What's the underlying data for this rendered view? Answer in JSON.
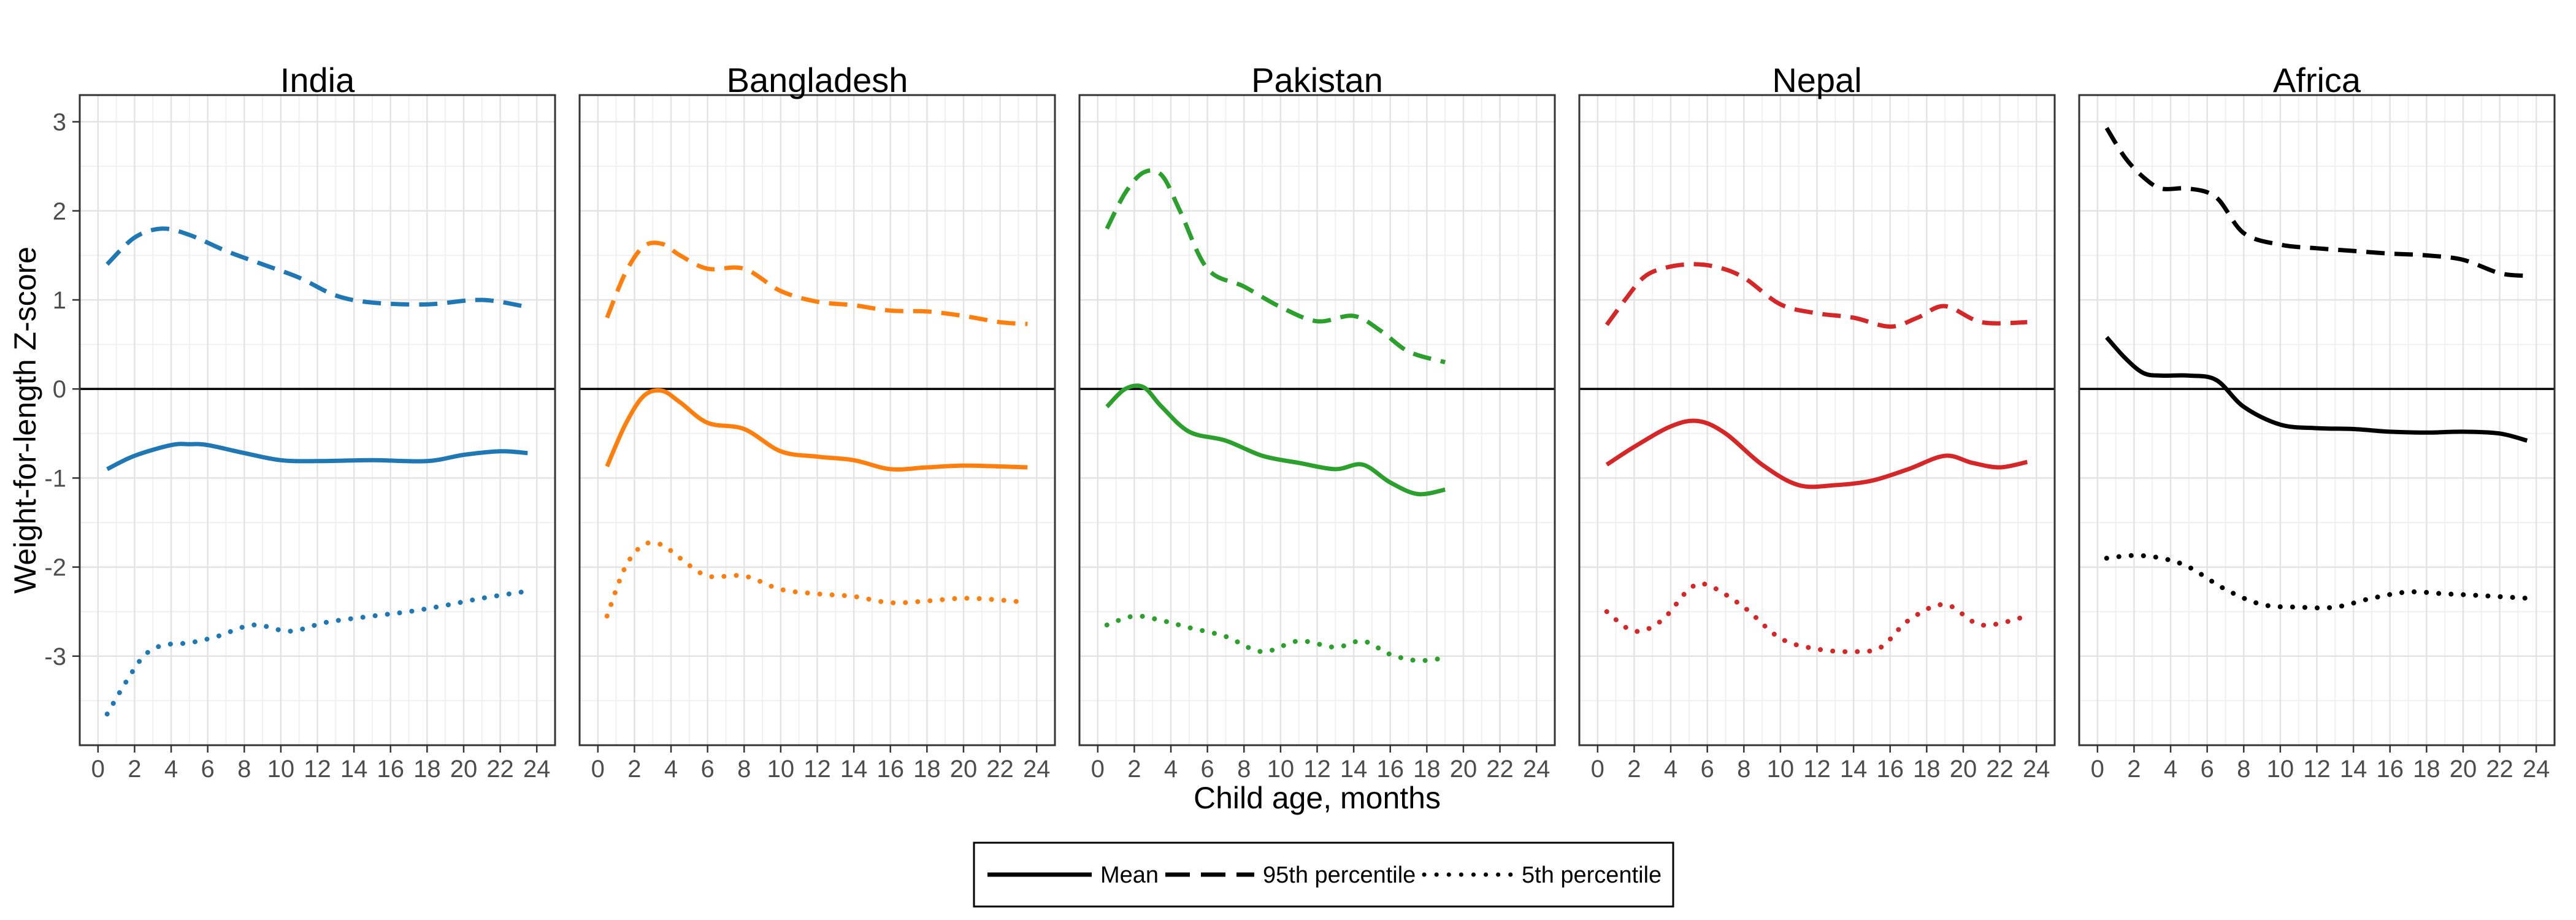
{
  "chart_data": {
    "type": "line",
    "xlabel": "Child age, months",
    "ylabel": "Weight-for-length Z-score",
    "xlim": [
      -1,
      25
    ],
    "ylim": [
      -4,
      3.3
    ],
    "xticks": [
      0,
      2,
      4,
      6,
      8,
      10,
      12,
      14,
      16,
      18,
      20,
      22,
      24
    ],
    "yticks": [
      -3,
      -2,
      -1,
      0,
      1,
      2,
      3
    ],
    "grid": true,
    "reference_line_y": 0,
    "legend": {
      "position": "bottom",
      "entries": [
        {
          "label": "Mean",
          "linetype": "solid"
        },
        {
          "label": "95th percentile",
          "linetype": "dashed"
        },
        {
          "label": "5th percentile",
          "linetype": "dotted"
        }
      ]
    },
    "panels": [
      {
        "title": "India",
        "color": "#1f77b4",
        "series": [
          {
            "linetype": "dashed",
            "x": [
              0.5,
              2,
              3.5,
              5,
              7,
              9,
              11,
              13,
              15,
              18,
              21,
              23.5
            ],
            "values": [
              1.4,
              1.7,
              1.8,
              1.73,
              1.55,
              1.4,
              1.25,
              1.05,
              0.97,
              0.95,
              1.0,
              0.92
            ]
          },
          {
            "linetype": "solid",
            "x": [
              0.5,
              2,
              4,
              5,
              6,
              8,
              10,
              12,
              15,
              18,
              20,
              22,
              23.5
            ],
            "values": [
              -0.9,
              -0.75,
              -0.63,
              -0.62,
              -0.63,
              -0.72,
              -0.8,
              -0.81,
              -0.8,
              -0.81,
              -0.74,
              -0.7,
              -0.72
            ]
          },
          {
            "linetype": "dotted",
            "x": [
              0.5,
              1.5,
              2.5,
              3.5,
              5,
              6.5,
              8.5,
              10.5,
              12.5,
              15,
              17,
              19,
              21,
              23.5
            ],
            "values": [
              -3.65,
              -3.3,
              -3.0,
              -2.88,
              -2.85,
              -2.78,
              -2.65,
              -2.72,
              -2.62,
              -2.55,
              -2.5,
              -2.43,
              -2.35,
              -2.27
            ]
          }
        ]
      },
      {
        "title": "Bangladesh",
        "color": "#ff7f0e",
        "series": [
          {
            "linetype": "dashed",
            "x": [
              0.5,
              1.5,
              2.5,
              3.5,
              4.5,
              6,
              8,
              10,
              12,
              14,
              16,
              18,
              20,
              22,
              23.5
            ],
            "values": [
              0.8,
              1.3,
              1.6,
              1.63,
              1.5,
              1.35,
              1.35,
              1.1,
              0.98,
              0.94,
              0.88,
              0.87,
              0.82,
              0.75,
              0.73
            ]
          },
          {
            "linetype": "solid",
            "x": [
              0.5,
              1.5,
              2.5,
              3.5,
              4.5,
              6,
              8,
              10,
              12,
              14,
              16,
              18,
              20,
              22,
              23.5
            ],
            "values": [
              -0.87,
              -0.4,
              -0.08,
              -0.02,
              -0.15,
              -0.38,
              -0.45,
              -0.7,
              -0.76,
              -0.8,
              -0.9,
              -0.88,
              -0.86,
              -0.87,
              -0.88
            ]
          },
          {
            "linetype": "dotted",
            "x": [
              0.5,
              1.5,
              2.5,
              3.5,
              4.5,
              6,
              8,
              10,
              12,
              14,
              16,
              18,
              20,
              22,
              23.5
            ],
            "values": [
              -2.55,
              -2.0,
              -1.75,
              -1.75,
              -1.9,
              -2.1,
              -2.1,
              -2.25,
              -2.3,
              -2.33,
              -2.4,
              -2.38,
              -2.35,
              -2.37,
              -2.4
            ]
          }
        ]
      },
      {
        "title": "Pakistan",
        "color": "#2ca02c",
        "series": [
          {
            "linetype": "dashed",
            "x": [
              0.5,
              1.5,
              2.5,
              3.5,
              4.5,
              6,
              8,
              10,
              12,
              14,
              15.5,
              17,
              19
            ],
            "values": [
              1.8,
              2.2,
              2.43,
              2.4,
              2.0,
              1.35,
              1.15,
              0.92,
              0.76,
              0.82,
              0.65,
              0.42,
              0.3
            ]
          },
          {
            "linetype": "solid",
            "x": [
              0.5,
              1.5,
              2.5,
              3.5,
              5,
              7,
              9,
              11,
              13,
              14.5,
              16,
              17.5,
              19
            ],
            "values": [
              -0.2,
              0.0,
              0.02,
              -0.2,
              -0.48,
              -0.58,
              -0.75,
              -0.83,
              -0.9,
              -0.85,
              -1.05,
              -1.18,
              -1.13
            ]
          },
          {
            "linetype": "dotted",
            "x": [
              0.5,
              2,
              3.5,
              5,
              7,
              9,
              11,
              13,
              14.5,
              16,
              17.5,
              19
            ],
            "values": [
              -2.65,
              -2.55,
              -2.6,
              -2.68,
              -2.78,
              -2.95,
              -2.83,
              -2.9,
              -2.83,
              -2.98,
              -3.05,
              -3.02
            ]
          }
        ]
      },
      {
        "title": "Nepal",
        "color": "#d62728",
        "series": [
          {
            "linetype": "dashed",
            "x": [
              0.5,
              1.5,
              2.5,
              3.5,
              5,
              6.5,
              8,
              10,
              12,
              14,
              16,
              17.5,
              19,
              21,
              23.5
            ],
            "values": [
              0.72,
              1.0,
              1.25,
              1.35,
              1.4,
              1.37,
              1.25,
              0.95,
              0.85,
              0.8,
              0.7,
              0.8,
              0.93,
              0.75,
              0.75
            ]
          },
          {
            "linetype": "solid",
            "x": [
              0.5,
              2,
              4,
              5.5,
              7,
              9,
              11,
              13,
              15,
              17,
              19,
              20.5,
              22,
              23.5
            ],
            "values": [
              -0.85,
              -0.65,
              -0.42,
              -0.36,
              -0.5,
              -0.85,
              -1.08,
              -1.08,
              -1.03,
              -0.9,
              -0.75,
              -0.83,
              -0.88,
              -0.82
            ]
          },
          {
            "linetype": "dotted",
            "x": [
              0.5,
              2,
              3.5,
              5,
              6,
              8,
              10,
              12,
              14,
              15.5,
              17,
              19,
              21,
              23.5
            ],
            "values": [
              -2.5,
              -2.72,
              -2.6,
              -2.25,
              -2.2,
              -2.45,
              -2.8,
              -2.92,
              -2.95,
              -2.9,
              -2.6,
              -2.42,
              -2.65,
              -2.55
            ]
          }
        ]
      },
      {
        "title": "Africa",
        "color": "#000000",
        "series": [
          {
            "linetype": "dashed",
            "x": [
              0.5,
              1.5,
              2.5,
              3.5,
              5,
              6.5,
              8,
              10,
              12,
              14,
              16,
              18,
              20,
              22,
              23.5
            ],
            "values": [
              2.93,
              2.6,
              2.38,
              2.25,
              2.25,
              2.15,
              1.75,
              1.62,
              1.58,
              1.55,
              1.52,
              1.5,
              1.45,
              1.3,
              1.27
            ]
          },
          {
            "linetype": "solid",
            "x": [
              0.5,
              1.5,
              2.5,
              3.5,
              5,
              6.5,
              8,
              10,
              12,
              14,
              16,
              18,
              20,
              22,
              23.5
            ],
            "values": [
              0.58,
              0.35,
              0.18,
              0.15,
              0.15,
              0.1,
              -0.2,
              -0.4,
              -0.44,
              -0.45,
              -0.48,
              -0.49,
              -0.48,
              -0.5,
              -0.58
            ]
          },
          {
            "linetype": "dotted",
            "x": [
              0.5,
              2,
              3.5,
              5,
              7,
              9,
              11,
              13,
              15,
              17,
              19,
              21,
              23.5
            ],
            "values": [
              -1.9,
              -1.87,
              -1.9,
              -2.0,
              -2.25,
              -2.42,
              -2.45,
              -2.45,
              -2.35,
              -2.28,
              -2.3,
              -2.32,
              -2.35
            ]
          }
        ]
      }
    ]
  }
}
